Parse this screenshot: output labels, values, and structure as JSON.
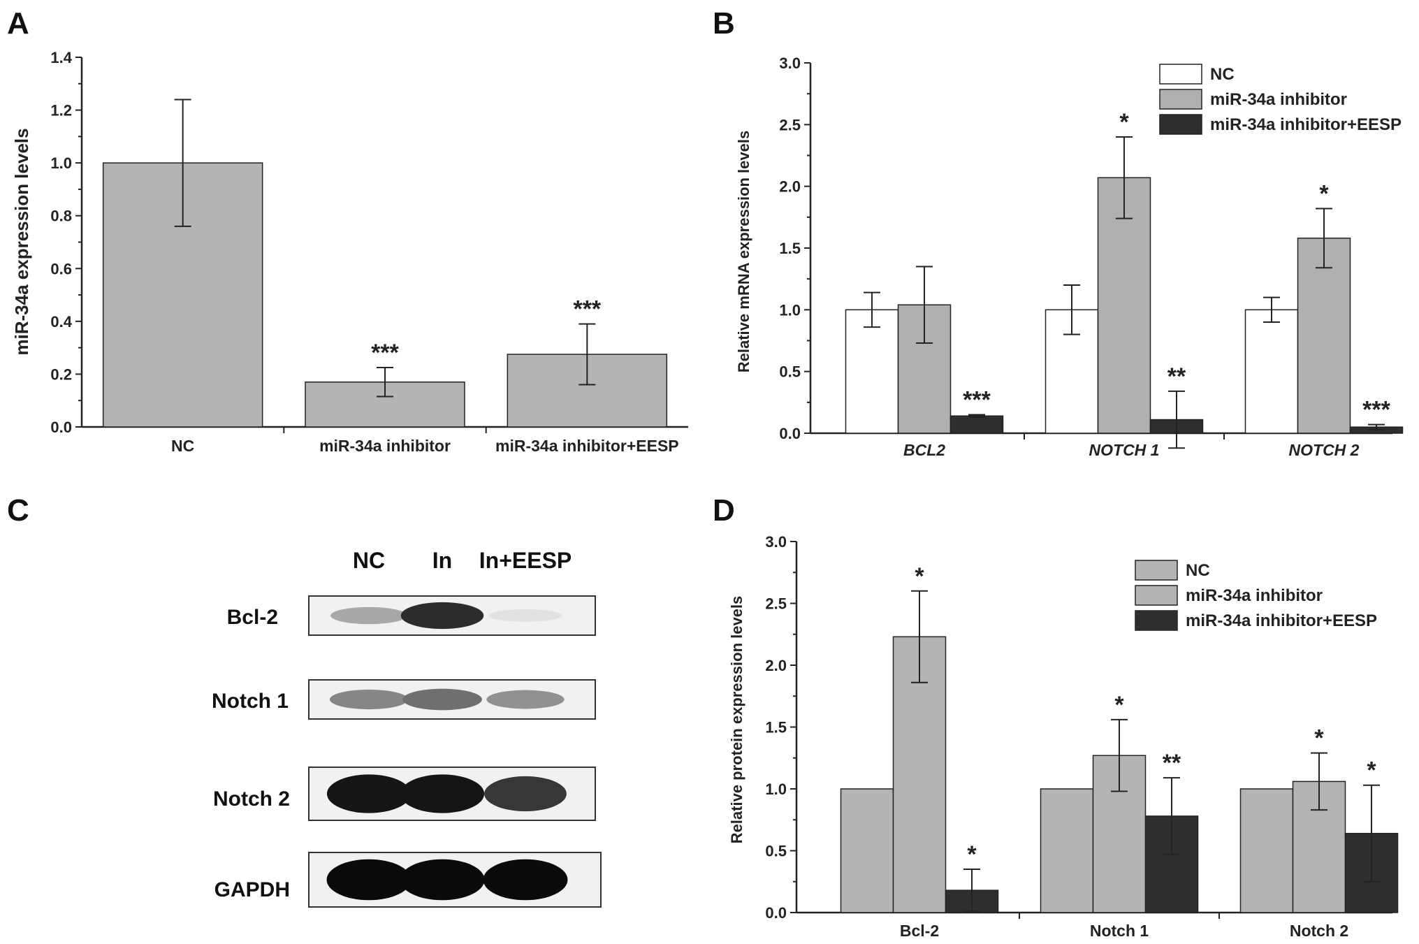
{
  "panel_letters": [
    "A",
    "B",
    "C",
    "D"
  ],
  "colors": {
    "nc_gray": "#b4b4b4",
    "inhibitor_gray": "#b0b0b0",
    "eesp_dark": "#2e2e2e",
    "white": "#ffffff",
    "axis": "#222222"
  },
  "chart_data": [
    {
      "panel": "A",
      "type": "bar",
      "ylabel": "miR-34a expression levels",
      "xlabel": "",
      "ylim": [
        0,
        1.4
      ],
      "yticks": [
        "0.0",
        "0.2",
        "0.4",
        "0.6",
        "0.8",
        "1.0",
        "1.2",
        "1.4"
      ],
      "categories": [
        "NC",
        "miR-34a inhibitor",
        "miR-34a inhibitor+EESP"
      ],
      "series": [
        {
          "values": [
            1.0,
            0.17,
            0.275
          ],
          "errors": [
            0.24,
            0.055,
            0.115
          ],
          "significance": [
            "",
            "***",
            "***"
          ],
          "color": "#b4b4b4"
        }
      ],
      "legend": []
    },
    {
      "panel": "B",
      "type": "bar",
      "ylabel": "Relative mRNA expression levels",
      "xlabel": "",
      "ylim": [
        0,
        3.0
      ],
      "yticks": [
        "0.0",
        "0.5",
        "1.0",
        "1.5",
        "2.0",
        "2.5",
        "3.0"
      ],
      "categories": [
        "BCL2",
        "NOTCH 1",
        "NOTCH 2"
      ],
      "categories_italic": true,
      "series": [
        {
          "name": "NC",
          "values": [
            1.0,
            1.0,
            1.0
          ],
          "errors": [
            0.14,
            0.2,
            0.1
          ],
          "significance": [
            "",
            "",
            ""
          ],
          "color": "#ffffff"
        },
        {
          "name": "miR-34a inhibitor",
          "values": [
            1.04,
            2.07,
            1.58
          ],
          "errors": [
            0.31,
            0.33,
            0.24
          ],
          "significance": [
            "",
            "*",
            "*"
          ],
          "color": "#b0b0b0"
        },
        {
          "name": "miR-34a inhibitor+EESP",
          "values": [
            0.14,
            0.11,
            0.05
          ],
          "errors": [
            0.01,
            0.23,
            0.02
          ],
          "significance": [
            "***",
            "**",
            "***"
          ],
          "color": "#2e2e2e"
        }
      ],
      "legend": "top-right"
    },
    {
      "panel": "D",
      "type": "bar",
      "ylabel": "Relative protein expression levels",
      "xlabel": "",
      "ylim": [
        0,
        3.0
      ],
      "yticks": [
        "0.0",
        "0.5",
        "1.0",
        "1.5",
        "2.0",
        "2.5",
        "3.0"
      ],
      "categories": [
        "Bcl-2",
        "Notch 1",
        "Notch 2"
      ],
      "categories_italic": false,
      "series": [
        {
          "name": "NC",
          "values": [
            1.0,
            1.0,
            1.0
          ],
          "errors": [
            0,
            0,
            0
          ],
          "significance": [
            "",
            "",
            ""
          ],
          "color": "#b4b4b4"
        },
        {
          "name": "miR-34a inhibitor",
          "values": [
            2.23,
            1.27,
            1.06
          ],
          "errors": [
            0.37,
            0.29,
            0.23
          ],
          "significance": [
            "*",
            "*",
            "*"
          ],
          "color": "#b4b4b4"
        },
        {
          "name": "miR-34a inhibitor+EESP",
          "values": [
            0.18,
            0.78,
            0.64
          ],
          "errors": [
            0.17,
            0.31,
            0.39
          ],
          "significance": [
            "*",
            "**",
            "*"
          ],
          "color": "#2e2e2e"
        }
      ],
      "legend": "top-right"
    }
  ],
  "blot": {
    "panel": "C",
    "lanes": [
      "NC",
      "In",
      "In+EESP"
    ],
    "rows": [
      {
        "label": "Bcl-2",
        "intensity": [
          0.3,
          0.85,
          0.04
        ]
      },
      {
        "label": "Notch 1",
        "intensity": [
          0.45,
          0.55,
          0.4
        ]
      },
      {
        "label": "Notch 2",
        "intensity": [
          0.95,
          0.95,
          0.8
        ]
      },
      {
        "label": "GAPDH",
        "intensity": [
          1.0,
          1.0,
          1.0
        ]
      }
    ]
  }
}
